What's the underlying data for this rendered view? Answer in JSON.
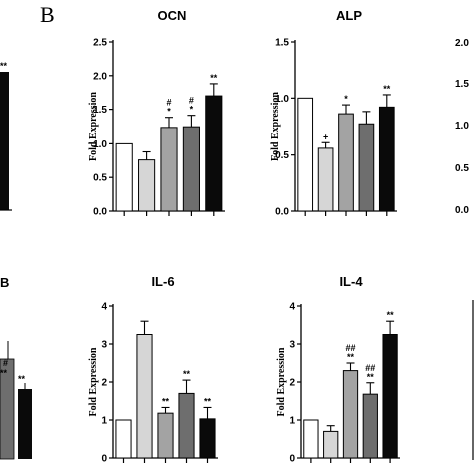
{
  "panel_label": "B",
  "partial_labels": {
    "top_left_sig": "**",
    "mid_left_title": "B",
    "mid_left_sig_a": "#",
    "mid_left_sig_b": "**",
    "mid_left_sig_c": "**",
    "top_right_tick_top": "2.0",
    "top_right_tick_mid": "1.5",
    "top_right_tick_low": "1.0",
    "top_right_tick_small": "0.5",
    "top_right_tick_zero": "0.0"
  },
  "colors": {
    "bar_1": "#ffffff",
    "bar_2": "#d6d6d6",
    "bar_3": "#a3a3a3",
    "bar_4": "#6e6e6e",
    "bar_5": "#0a0a0a",
    "axis": "#000000"
  },
  "chart_data": [
    {
      "type": "bar",
      "title": "OCN",
      "ylabel": "Fold Expression",
      "ylim": [
        0,
        2.5
      ],
      "yticks": [
        "0.0",
        "0.5",
        "1.0",
        "1.5",
        "2.0",
        "2.5"
      ],
      "values": [
        1.0,
        0.76,
        1.23,
        1.24,
        1.7
      ],
      "errors": [
        0.0,
        0.12,
        0.15,
        0.17,
        0.18
      ],
      "annotations": [
        [],
        [],
        [
          "#",
          "*"
        ],
        [
          "#",
          "*"
        ],
        [
          "**"
        ]
      ]
    },
    {
      "type": "bar",
      "title": "ALP",
      "ylabel": "Fold Expression",
      "ylim": [
        0,
        1.5
      ],
      "yticks": [
        "0.0",
        "0.5",
        "1.0",
        "1.5"
      ],
      "values": [
        1.0,
        0.56,
        0.86,
        0.77,
        0.92
      ],
      "errors": [
        0.0,
        0.05,
        0.08,
        0.11,
        0.11
      ],
      "annotations": [
        [],
        [
          "+"
        ],
        [
          "*"
        ],
        [],
        [
          "**"
        ]
      ]
    },
    {
      "type": "bar",
      "title": "IL-6",
      "ylabel": "Fold Expression",
      "ylim": [
        0,
        4
      ],
      "yticks": [
        "0",
        "1",
        "2",
        "3",
        "4"
      ],
      "values": [
        1.0,
        3.25,
        1.18,
        1.7,
        1.03
      ],
      "errors": [
        0.0,
        0.35,
        0.15,
        0.35,
        0.3
      ],
      "annotations": [
        [],
        [],
        [
          "**"
        ],
        [
          "**"
        ],
        [
          "**"
        ]
      ]
    },
    {
      "type": "bar",
      "title": "IL-4",
      "ylabel": "Fold Expression",
      "ylim": [
        0,
        4
      ],
      "yticks": [
        "0",
        "1",
        "2",
        "3",
        "4"
      ],
      "values": [
        1.0,
        0.7,
        2.3,
        1.68,
        3.25
      ],
      "errors": [
        0.0,
        0.15,
        0.2,
        0.3,
        0.35
      ],
      "annotations": [
        [],
        [],
        [
          "##",
          "**"
        ],
        [
          "##",
          "**"
        ],
        [
          "**"
        ]
      ]
    }
  ]
}
